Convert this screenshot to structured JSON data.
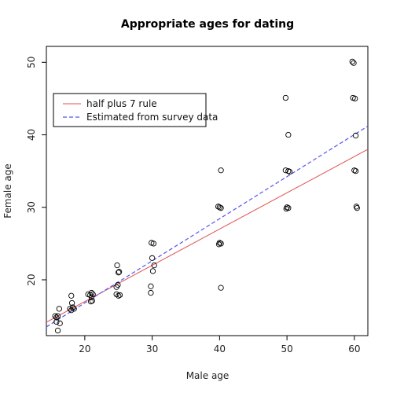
{
  "chart_data": {
    "type": "scatter",
    "title": "Appropriate ages for dating",
    "xlabel": "Male age",
    "ylabel": "Female age",
    "xlim": [
      14.3,
      62
    ],
    "ylim": [
      12.3,
      52.2
    ],
    "x_ticks": [
      20,
      30,
      40,
      50,
      60
    ],
    "y_ticks": [
      20,
      30,
      40,
      50
    ],
    "grid": false,
    "legend_position": "top-left",
    "points": [
      [
        16.2,
        16.0
      ],
      [
        16.0,
        15.0
      ],
      [
        15.8,
        14.8
      ],
      [
        15.6,
        15.0
      ],
      [
        16.3,
        14.0
      ],
      [
        15.8,
        14.2
      ],
      [
        16.0,
        13.0
      ],
      [
        17.8,
        16.0
      ],
      [
        18.0,
        15.8
      ],
      [
        18.2,
        16.2
      ],
      [
        18.4,
        16.0
      ],
      [
        18.1,
        16.8
      ],
      [
        18.0,
        17.8
      ],
      [
        20.5,
        18.0
      ],
      [
        20.8,
        17.9
      ],
      [
        21.0,
        18.2
      ],
      [
        21.2,
        18.0
      ],
      [
        20.9,
        17.0
      ],
      [
        21.1,
        17.1
      ],
      [
        21.0,
        17.6
      ],
      [
        24.8,
        22.0
      ],
      [
        25.1,
        21.1
      ],
      [
        25.0,
        21.0
      ],
      [
        24.9,
        19.3
      ],
      [
        24.7,
        19.0
      ],
      [
        24.7,
        18.0
      ],
      [
        25.2,
        17.9
      ],
      [
        25.0,
        17.8
      ],
      [
        29.9,
        25.1
      ],
      [
        30.2,
        25.0
      ],
      [
        30.0,
        23.0
      ],
      [
        30.3,
        22.0
      ],
      [
        30.1,
        21.2
      ],
      [
        29.8,
        19.1
      ],
      [
        29.8,
        18.2
      ],
      [
        39.8,
        30.1
      ],
      [
        40.0,
        30.0
      ],
      [
        40.2,
        29.9
      ],
      [
        40.0,
        25.1
      ],
      [
        40.2,
        25.0
      ],
      [
        39.9,
        24.9
      ],
      [
        40.2,
        35.1
      ],
      [
        40.2,
        18.9
      ],
      [
        49.8,
        45.1
      ],
      [
        49.8,
        35.1
      ],
      [
        50.2,
        35.0
      ],
      [
        50.4,
        34.9
      ],
      [
        50.0,
        30.0
      ],
      [
        50.2,
        29.9
      ],
      [
        49.9,
        29.8
      ],
      [
        50.2,
        40.0
      ],
      [
        59.7,
        50.1
      ],
      [
        59.9,
        49.9
      ],
      [
        59.8,
        45.1
      ],
      [
        60.1,
        45.0
      ],
      [
        60.0,
        35.1
      ],
      [
        60.2,
        35.0
      ],
      [
        60.3,
        30.1
      ],
      [
        60.2,
        39.9
      ],
      [
        60.4,
        29.9
      ]
    ],
    "series": [
      {
        "name": "half plus 7 rule",
        "type": "line",
        "color": "#e05050",
        "dash": "solid",
        "points": [
          [
            14.3,
            14.15
          ],
          [
            62,
            38.0
          ]
        ]
      },
      {
        "name": "Estimated from survey data",
        "type": "line",
        "color": "#5555ee",
        "dash": "dashed",
        "points": [
          [
            14.3,
            13.5
          ],
          [
            62,
            41.2
          ]
        ]
      }
    ]
  }
}
